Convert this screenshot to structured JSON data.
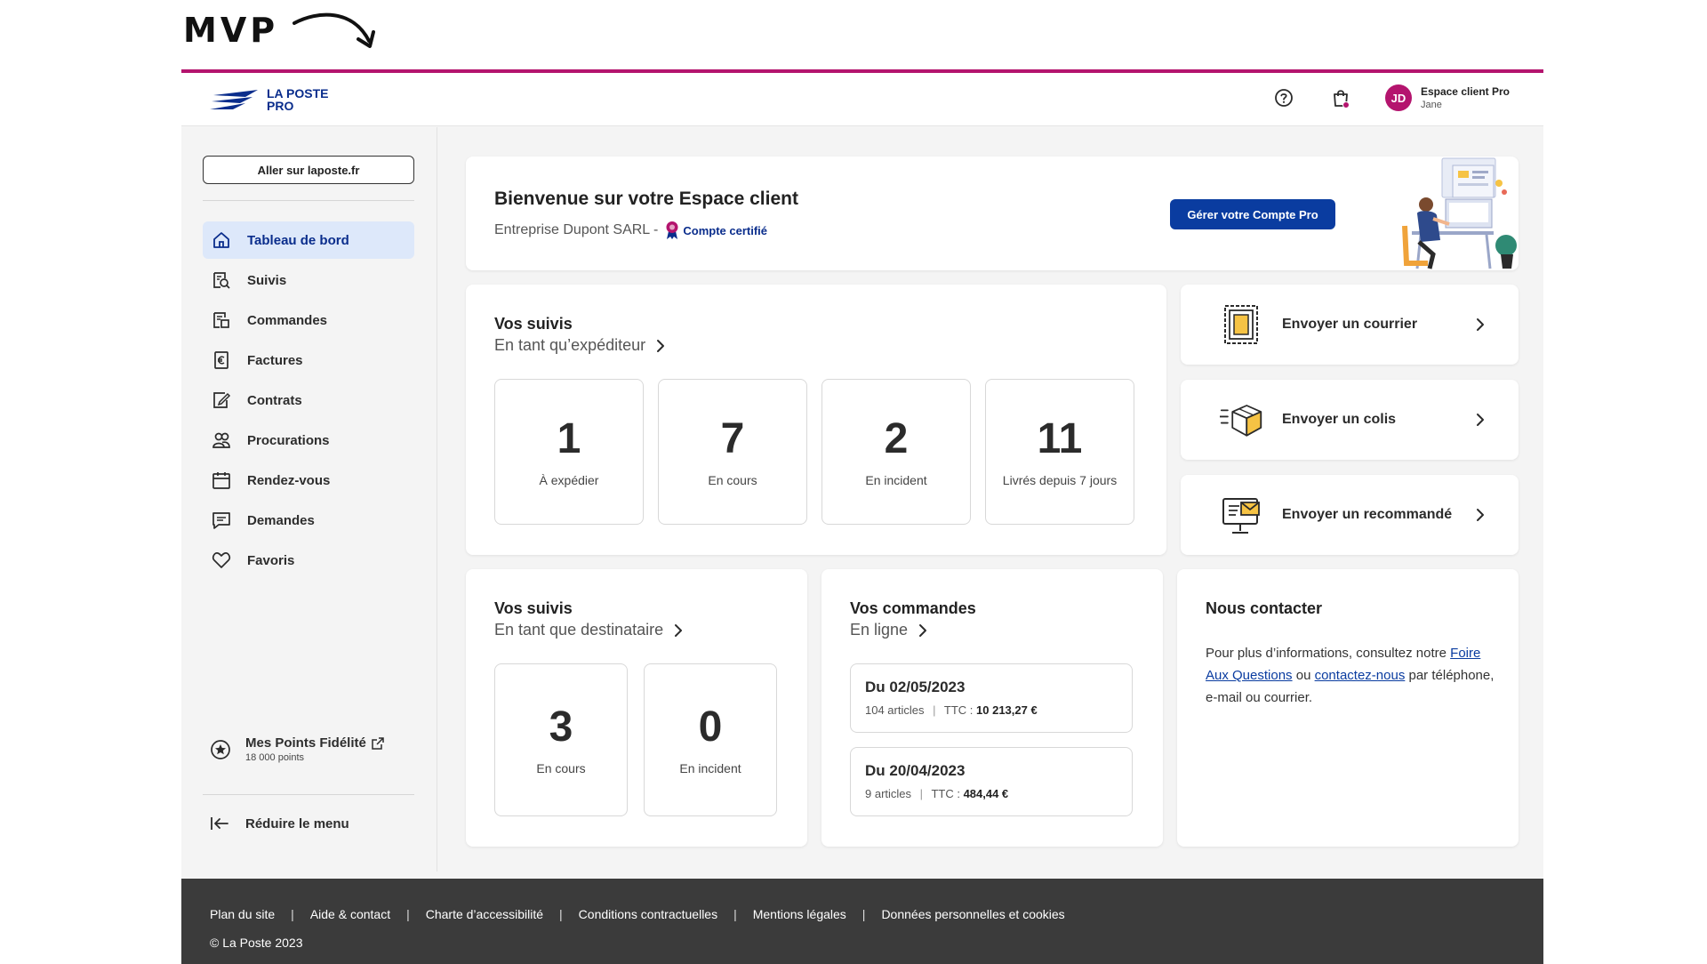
{
  "annotation": {
    "label": "MVP"
  },
  "header": {
    "logo_line1": "LA POSTE",
    "logo_line2": "PRO",
    "user_initials": "JD",
    "user_title": "Espace client Pro",
    "user_name": "Jane",
    "brand_color": "#b4146e",
    "primary_color": "#0a3ca0"
  },
  "sidebar": {
    "go_button": "Aller sur laposte.fr",
    "items": [
      {
        "label": "Tableau de bord",
        "icon": "home-icon",
        "active": true
      },
      {
        "label": "Suivis",
        "icon": "tracking-search-icon"
      },
      {
        "label": "Commandes",
        "icon": "orders-icon"
      },
      {
        "label": "Factures",
        "icon": "invoice-euro-icon"
      },
      {
        "label": "Contrats",
        "icon": "contract-edit-icon"
      },
      {
        "label": "Procurations",
        "icon": "people-icon"
      },
      {
        "label": "Rendez-vous",
        "icon": "calendar-icon"
      },
      {
        "label": "Demandes",
        "icon": "message-icon"
      },
      {
        "label": "Favoris",
        "icon": "heart-icon"
      }
    ],
    "loyalty_title": "Mes Points Fidélité",
    "loyalty_points": "18 000 points",
    "collapse_label": "Réduire le menu"
  },
  "welcome": {
    "title": "Bienvenue sur votre Espace client",
    "company": "Entreprise Dupont SARL -",
    "certified": "Compte certifié",
    "manage_button": "Gérer votre Compte Pro"
  },
  "shipper_tracking": {
    "title": "Vos suivis",
    "subtitle": "En tant qu’expéditeur",
    "stats": [
      {
        "value": "1",
        "label": "À expédier"
      },
      {
        "value": "7",
        "label": "En cours"
      },
      {
        "value": "2",
        "label": "En incident"
      },
      {
        "value": "11",
        "label": "Livrés depuis 7 jours"
      }
    ]
  },
  "actions": [
    {
      "label": "Envoyer un courrier",
      "icon": "stamp-letter-icon"
    },
    {
      "label": "Envoyer un colis",
      "icon": "parcel-box-icon"
    },
    {
      "label": "Envoyer un recommandé",
      "icon": "registered-mail-icon"
    }
  ],
  "recipient_tracking": {
    "title": "Vos suivis",
    "subtitle": "En tant que destinataire",
    "stats": [
      {
        "value": "3",
        "label": "En cours"
      },
      {
        "value": "0",
        "label": "En incident"
      }
    ]
  },
  "orders": {
    "title": "Vos commandes",
    "subtitle": "En ligne",
    "items": [
      {
        "date": "Du 02/05/2023",
        "articles": "104 articles",
        "ttc_label": "TTC :",
        "ttc_value": "10 213,27 €"
      },
      {
        "date": "Du 20/04/2023",
        "articles": "9 articles",
        "ttc_label": "TTC :",
        "ttc_value": "484,44 €"
      }
    ]
  },
  "contact": {
    "title": "Nous contacter",
    "text_before": "Pour plus d’informations, consultez notre",
    "faq_link": "Foire Aux Questions",
    "text_middle": "ou",
    "contact_link": "contactez-nous",
    "text_after": "par téléphone, e-mail ou courrier."
  },
  "footer": {
    "links": [
      "Plan du site",
      "Aide & contact",
      "Charte d’accessibilité",
      "Conditions contractuelles",
      "Mentions légales",
      "Données personnelles et cookies"
    ],
    "copyright": "©  La Poste 2023"
  }
}
